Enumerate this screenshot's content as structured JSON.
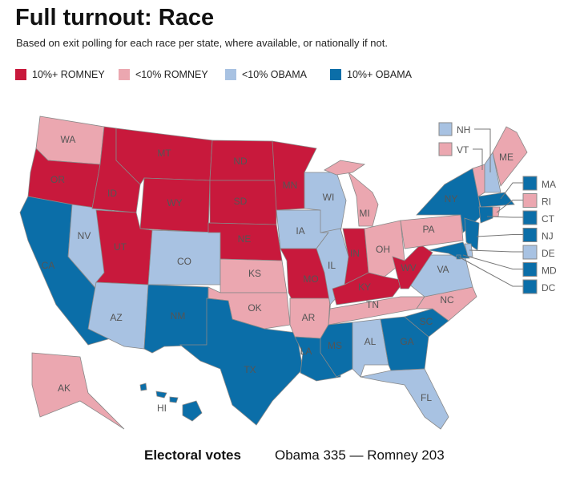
{
  "title": "Full turnout: Race",
  "subtitle": "Based on exit polling for each race per state, where available, or nationally if not.",
  "colors": {
    "strong_romney": "#c8193c",
    "lean_romney": "#eba7b0",
    "lean_obama": "#a8c2e2",
    "strong_obama": "#0b6ea8"
  },
  "legend": [
    {
      "label": "10%+ ROMNEY",
      "key": "strong_romney"
    },
    {
      "label": "<10% ROMNEY",
      "key": "lean_romney"
    },
    {
      "label": "<10% OBAMA",
      "key": "lean_obama"
    },
    {
      "label": "10%+ OBAMA",
      "key": "strong_obama"
    }
  ],
  "states": {
    "WA": "lean_romney",
    "OR": "strong_romney",
    "CA": "strong_obama",
    "NV": "lean_obama",
    "ID": "strong_romney",
    "MT": "strong_romney",
    "WY": "strong_romney",
    "UT": "strong_romney",
    "AZ": "lean_obama",
    "CO": "lean_obama",
    "NM": "strong_obama",
    "ND": "strong_romney",
    "SD": "strong_romney",
    "NE": "strong_romney",
    "KS": "lean_romney",
    "OK": "lean_romney",
    "TX": "strong_obama",
    "MN": "strong_romney",
    "IA": "lean_obama",
    "MO": "strong_romney",
    "AR": "lean_romney",
    "LA": "strong_obama",
    "WI": "lean_obama",
    "IL": "lean_obama",
    "MI": "lean_romney",
    "IN": "strong_romney",
    "OH": "lean_romney",
    "KY": "strong_romney",
    "TN": "lean_romney",
    "MS": "strong_obama",
    "AL": "lean_obama",
    "GA": "strong_obama",
    "FL": "lean_obama",
    "SC": "strong_obama",
    "NC": "lean_romney",
    "VA": "lean_obama",
    "WV": "strong_romney",
    "PA": "lean_romney",
    "NY": "strong_obama",
    "NJ": "strong_obama",
    "VT": "lean_romney",
    "NH": "lean_obama",
    "ME": "lean_romney",
    "MA": "strong_obama",
    "CT": "strong_obama",
    "RI": "lean_romney",
    "DE": "lean_obama",
    "MD": "strong_obama",
    "DC": "strong_obama",
    "AK": "lean_romney",
    "HI": "strong_obama"
  },
  "callouts_top": [
    "NH",
    "VT"
  ],
  "callouts_right": [
    "MA",
    "RI",
    "CT",
    "NJ",
    "DE",
    "MD",
    "DC"
  ],
  "electoral": {
    "label": "Electoral votes",
    "result": "Obama 335 — Romney 203"
  }
}
